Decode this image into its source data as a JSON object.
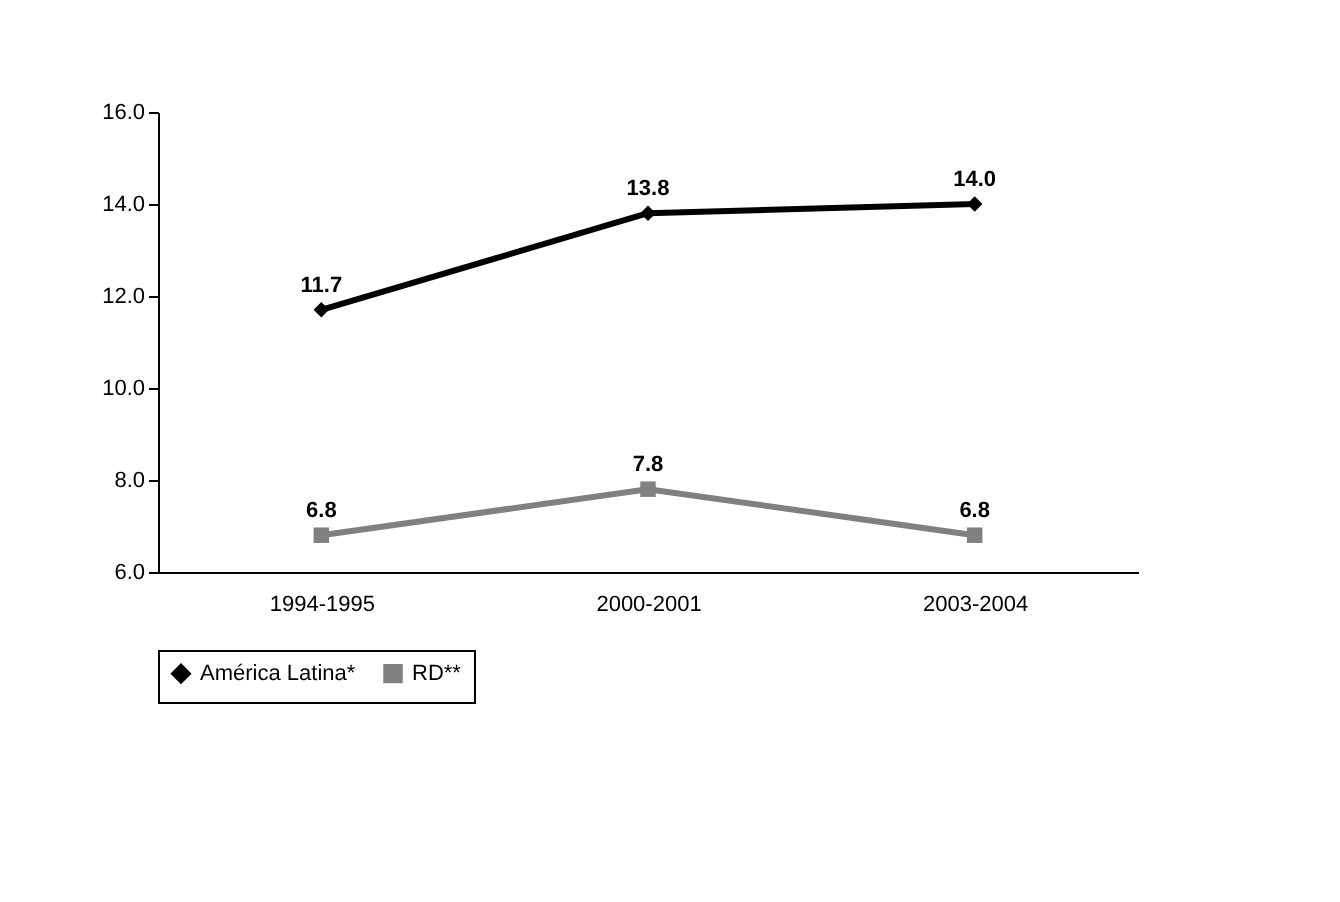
{
  "chart_data": {
    "type": "line",
    "categories": [
      "1994-1995",
      "2000-2001",
      "2003-2004"
    ],
    "series": [
      {
        "name": "América Latina*",
        "color": "#000000",
        "marker": "diamond",
        "values": [
          11.7,
          13.8,
          14.0
        ],
        "value_labels": [
          "11.7",
          "13.8",
          "14.0"
        ]
      },
      {
        "name": "RD**",
        "color": "#808080",
        "marker": "square",
        "values": [
          6.8,
          7.8,
          6.8
        ],
        "value_labels": [
          "6.8",
          "7.8",
          "6.8"
        ]
      }
    ],
    "ylim": [
      6,
      16
    ],
    "yticks": [
      {
        "value": 6,
        "label": "6.0"
      },
      {
        "value": 8,
        "label": "8.0"
      },
      {
        "value": 10,
        "label": "10.0"
      },
      {
        "value": 12,
        "label": "12.0"
      },
      {
        "value": 14,
        "label": "14.0"
      },
      {
        "value": 16,
        "label": "16.0"
      }
    ],
    "grid": false,
    "legend": "bottom",
    "line_style": "solid"
  }
}
